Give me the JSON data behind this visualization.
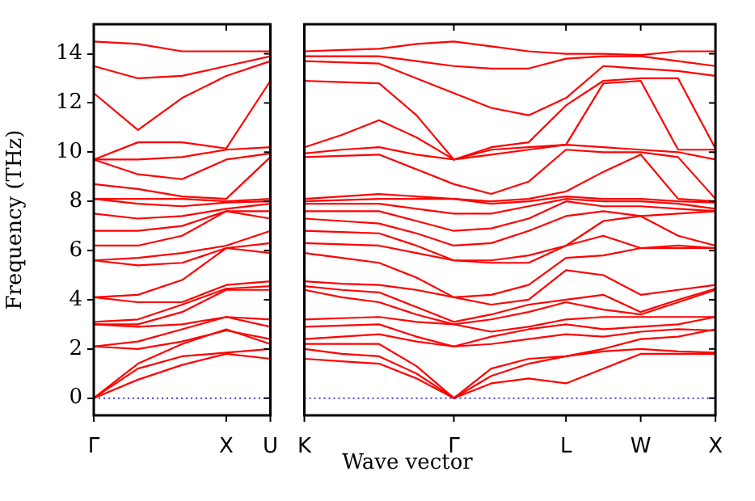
{
  "chart_data": [
    {
      "type": "line",
      "ylabel": "Frequency (THz)",
      "xlabel": "Wave vector",
      "marker": "none",
      "line_style": "solid",
      "grid": false,
      "legend": false,
      "categories": [
        "Γ",
        null,
        null,
        "X",
        "U"
      ],
      "ylim": [
        -0.7,
        15.2
      ],
      "yticks": [
        0,
        2,
        4,
        6,
        8,
        10,
        12,
        14
      ],
      "ref_lines": [
        {
          "axis": "y",
          "value": 0,
          "color": "#0000ff",
          "line_style": "dotted"
        }
      ],
      "series": [
        {
          "color": "#ff0000",
          "values": [
            0,
            0.75,
            1.35,
            1.8,
            1.6
          ]
        },
        {
          "color": "#ff0000",
          "values": [
            0,
            1.2,
            1.7,
            1.85,
            2.0
          ]
        },
        {
          "color": "#ff0000",
          "values": [
            0,
            1.4,
            2.2,
            2.8,
            2.2
          ]
        },
        {
          "color": "#ff0000",
          "values": [
            2.1,
            2.0,
            2.3,
            2.75,
            2.4
          ]
        },
        {
          "color": "#ff0000",
          "values": [
            2.1,
            2.3,
            2.8,
            3.3,
            2.9
          ]
        },
        {
          "color": "#ff0000",
          "values": [
            3.0,
            2.9,
            3.0,
            3.3,
            3.2
          ]
        },
        {
          "color": "#ff0000",
          "values": [
            3.0,
            3.0,
            3.5,
            4.4,
            4.4
          ]
        },
        {
          "color": "#ff0000",
          "values": [
            3.1,
            3.2,
            3.8,
            4.45,
            4.55
          ]
        },
        {
          "color": "#ff0000",
          "values": [
            4.1,
            3.9,
            3.9,
            4.6,
            4.75
          ]
        },
        {
          "color": "#ff0000",
          "values": [
            4.1,
            4.2,
            4.8,
            6.1,
            5.9
          ]
        },
        {
          "color": "#ff0000",
          "values": [
            5.6,
            5.4,
            5.5,
            6.1,
            6.3
          ]
        },
        {
          "color": "#ff0000",
          "values": [
            5.6,
            5.7,
            5.9,
            6.2,
            6.8
          ]
        },
        {
          "color": "#ff0000",
          "values": [
            6.2,
            6.2,
            6.6,
            7.6,
            7.3
          ]
        },
        {
          "color": "#ff0000",
          "values": [
            6.8,
            6.8,
            7.0,
            7.6,
            7.6
          ]
        },
        {
          "color": "#ff0000",
          "values": [
            7.5,
            7.3,
            7.4,
            7.7,
            7.9
          ]
        },
        {
          "color": "#ff0000",
          "values": [
            8.1,
            7.9,
            7.8,
            7.95,
            8.0
          ]
        },
        {
          "color": "#ff0000",
          "values": [
            8.1,
            8.1,
            8.1,
            8.0,
            8.1
          ]
        },
        {
          "color": "#ff0000",
          "values": [
            8.7,
            8.5,
            8.2,
            8.1,
            9.8
          ]
        },
        {
          "color": "#ff0000",
          "values": [
            9.7,
            9.1,
            8.9,
            9.7,
            9.95
          ]
        },
        {
          "color": "#ff0000",
          "values": [
            9.7,
            9.7,
            9.8,
            10.1,
            10.2
          ]
        },
        {
          "color": "#ff0000",
          "values": [
            9.7,
            10.4,
            10.4,
            10.15,
            12.9
          ]
        },
        {
          "color": "#ff0000",
          "values": [
            12.4,
            10.9,
            12.2,
            13.1,
            13.7
          ]
        },
        {
          "color": "#ff0000",
          "values": [
            13.5,
            13.0,
            13.1,
            13.5,
            13.9
          ]
        },
        {
          "color": "#ff0000",
          "values": [
            14.5,
            14.4,
            14.1,
            14.1,
            14.1
          ]
        }
      ]
    },
    {
      "type": "line",
      "marker": "none",
      "line_style": "solid",
      "grid": false,
      "legend": false,
      "tick_labels": "x",
      "categories": [
        "K",
        null,
        null,
        null,
        "Γ",
        null,
        null,
        "L",
        null,
        "W",
        null,
        "X"
      ],
      "ylim": [
        -0.7,
        15.2
      ],
      "yticks": [
        0,
        2,
        4,
        6,
        8,
        10,
        12,
        14
      ],
      "ref_lines": [
        {
          "axis": "y",
          "value": 0,
          "color": "#0000ff",
          "line_style": "dotted"
        }
      ],
      "series": [
        {
          "color": "#ff0000",
          "values": [
            1.6,
            1.5,
            1.4,
            0.8,
            0,
            0.6,
            0.8,
            0.6,
            1.2,
            1.8,
            1.8,
            1.8
          ]
        },
        {
          "color": "#ff0000",
          "values": [
            2.0,
            1.8,
            1.7,
            1.0,
            0,
            0.9,
            1.4,
            1.7,
            1.9,
            2.0,
            1.9,
            1.85
          ]
        },
        {
          "color": "#ff0000",
          "values": [
            2.2,
            2.2,
            2.2,
            1.3,
            0,
            1.2,
            1.6,
            1.7,
            2.0,
            2.4,
            2.5,
            2.8
          ]
        },
        {
          "color": "#ff0000",
          "values": [
            2.4,
            2.5,
            2.6,
            2.3,
            2.1,
            2.2,
            2.4,
            2.6,
            2.5,
            2.7,
            2.8,
            2.75
          ]
        },
        {
          "color": "#ff0000",
          "values": [
            2.9,
            2.95,
            3.0,
            2.5,
            2.1,
            2.5,
            2.8,
            3.0,
            2.8,
            2.9,
            3.0,
            3.3
          ]
        },
        {
          "color": "#ff0000",
          "values": [
            3.2,
            3.25,
            3.3,
            3.1,
            3.0,
            2.7,
            2.9,
            3.2,
            3.3,
            3.3,
            3.3,
            3.3
          ]
        },
        {
          "color": "#ff0000",
          "values": [
            4.4,
            4.1,
            3.9,
            3.4,
            3.0,
            3.2,
            3.5,
            3.9,
            3.6,
            3.4,
            3.9,
            4.4
          ]
        },
        {
          "color": "#ff0000",
          "values": [
            4.55,
            4.4,
            4.3,
            3.7,
            3.1,
            3.4,
            3.8,
            4.0,
            4.2,
            3.5,
            4.0,
            4.45
          ]
        },
        {
          "color": "#ff0000",
          "values": [
            4.75,
            4.65,
            4.6,
            4.4,
            4.1,
            3.8,
            4.0,
            5.2,
            5.0,
            4.2,
            4.4,
            4.6
          ]
        },
        {
          "color": "#ff0000",
          "values": [
            5.9,
            5.7,
            5.5,
            4.9,
            4.1,
            4.2,
            4.6,
            5.7,
            5.8,
            6.1,
            6.1,
            6.1
          ]
        },
        {
          "color": "#ff0000",
          "values": [
            6.3,
            6.25,
            6.2,
            5.9,
            5.6,
            5.5,
            5.5,
            6.2,
            6.6,
            6.1,
            6.2,
            6.1
          ]
        },
        {
          "color": "#ff0000",
          "values": [
            6.8,
            6.75,
            6.7,
            6.2,
            5.6,
            5.6,
            5.8,
            6.2,
            7.2,
            7.4,
            6.6,
            6.2
          ]
        },
        {
          "color": "#ff0000",
          "values": [
            7.3,
            7.2,
            7.1,
            6.7,
            6.2,
            6.3,
            6.8,
            7.4,
            7.6,
            7.4,
            7.5,
            7.6
          ]
        },
        {
          "color": "#ff0000",
          "values": [
            7.6,
            7.6,
            7.6,
            7.2,
            6.8,
            6.9,
            7.3,
            8.0,
            7.8,
            7.8,
            7.7,
            7.6
          ]
        },
        {
          "color": "#ff0000",
          "values": [
            7.9,
            7.9,
            7.9,
            7.7,
            7.5,
            7.5,
            7.8,
            8.1,
            8.0,
            8.0,
            7.9,
            7.7
          ]
        },
        {
          "color": "#ff0000",
          "values": [
            8.0,
            8.05,
            8.1,
            8.1,
            8.1,
            7.9,
            8.0,
            8.2,
            8.1,
            8.1,
            8.0,
            7.95
          ]
        },
        {
          "color": "#ff0000",
          "values": [
            8.1,
            8.2,
            8.3,
            8.2,
            8.1,
            8.0,
            8.1,
            8.4,
            9.2,
            9.9,
            8.1,
            8.0
          ]
        },
        {
          "color": "#ff0000",
          "values": [
            9.8,
            9.85,
            9.9,
            9.3,
            8.7,
            8.3,
            8.8,
            10.1,
            10.0,
            10.0,
            9.8,
            8.1
          ]
        },
        {
          "color": "#ff0000",
          "values": [
            9.95,
            10.1,
            10.2,
            9.9,
            9.7,
            9.9,
            10.1,
            10.3,
            10.2,
            10.1,
            10.0,
            9.7
          ]
        },
        {
          "color": "#ff0000",
          "values": [
            10.2,
            10.7,
            11.3,
            10.6,
            9.7,
            10.1,
            10.2,
            10.3,
            12.8,
            12.9,
            10.1,
            10.1
          ]
        },
        {
          "color": "#ff0000",
          "values": [
            12.9,
            12.85,
            12.8,
            11.5,
            9.7,
            10.2,
            10.4,
            11.9,
            12.9,
            13.0,
            13.0,
            10.15
          ]
        },
        {
          "color": "#ff0000",
          "values": [
            13.7,
            13.65,
            13.6,
            13.0,
            12.4,
            11.8,
            11.5,
            12.2,
            13.5,
            13.4,
            13.3,
            13.1
          ]
        },
        {
          "color": "#ff0000",
          "values": [
            13.9,
            13.9,
            13.9,
            13.7,
            13.5,
            13.4,
            13.4,
            13.8,
            13.9,
            13.9,
            13.7,
            13.5
          ]
        },
        {
          "color": "#ff0000",
          "values": [
            14.1,
            14.15,
            14.2,
            14.4,
            14.5,
            14.3,
            14.1,
            14.0,
            14.0,
            13.95,
            14.1,
            14.1
          ]
        }
      ]
    }
  ]
}
